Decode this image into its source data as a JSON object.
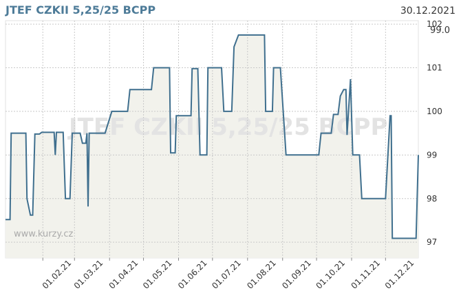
{
  "chart_data": {
    "type": "line",
    "title": "JTEF CZKII 5,25/25 BCPP",
    "date": "30.12.2021",
    "current_label": "99.0",
    "watermark": "JTEF CZKII 5,25/25 BCPP",
    "source": "www.kurzy.cz",
    "x": [
      "2020-12-30",
      "2021-01-03",
      "2021-01-04",
      "2021-01-17",
      "2021-01-18",
      "2021-01-21",
      "2021-01-23",
      "2021-01-25",
      "2021-01-29",
      "2021-01-31",
      "2021-02-11",
      "2021-02-12",
      "2021-02-13",
      "2021-02-19",
      "2021-02-21",
      "2021-02-25",
      "2021-02-27",
      "2021-03-06",
      "2021-03-08",
      "2021-03-11",
      "2021-03-12",
      "2021-03-13",
      "2021-03-14",
      "2021-03-28",
      "2021-04-03",
      "2021-04-17",
      "2021-04-19",
      "2021-05-08",
      "2021-05-10",
      "2021-05-24",
      "2021-05-25",
      "2021-05-29",
      "2021-05-30",
      "2021-06-12",
      "2021-06-13",
      "2021-06-18",
      "2021-06-20",
      "2021-06-26",
      "2021-06-27",
      "2021-07-09",
      "2021-07-11",
      "2021-07-18",
      "2021-07-20",
      "2021-07-24",
      "2021-08-16",
      "2021-08-17",
      "2021-08-23",
      "2021-08-24",
      "2021-08-30",
      "2021-09-04",
      "2021-10-03",
      "2021-10-05",
      "2021-10-14",
      "2021-10-16",
      "2021-10-20",
      "2021-10-22",
      "2021-10-25",
      "2021-10-27",
      "2021-10-28",
      "2021-10-31",
      "2021-11-02",
      "2021-11-08",
      "2021-11-10",
      "2021-12-01",
      "2021-12-05",
      "2021-12-06",
      "2021-12-07",
      "2021-12-28",
      "2021-12-30"
    ],
    "series": [
      {
        "name": "JTEF CZKII 5,25/25 BCPP",
        "color": "#3f6f8e",
        "values": [
          97.52,
          97.52,
          99.5,
          99.5,
          98.0,
          97.62,
          97.62,
          99.48,
          99.48,
          99.52,
          99.52,
          99.0,
          99.52,
          99.52,
          98.0,
          98.0,
          99.5,
          99.5,
          99.27,
          99.27,
          99.5,
          97.82,
          99.5,
          99.5,
          100.0,
          100.0,
          100.5,
          100.5,
          101.0,
          101.0,
          99.05,
          99.05,
          99.9,
          99.9,
          100.98,
          100.98,
          99.0,
          99.0,
          101.0,
          101.0,
          100.0,
          100.0,
          101.48,
          101.75,
          101.75,
          100.0,
          100.0,
          101.0,
          101.0,
          99.0,
          99.0,
          99.5,
          99.5,
          99.93,
          99.93,
          100.35,
          100.5,
          100.5,
          99.46,
          100.74,
          99.0,
          99.0,
          98.0,
          98.0,
          99.9,
          99.9,
          97.09,
          97.09,
          99.0
        ]
      }
    ],
    "fill_color": "#f2f2ec",
    "xlim": [
      "2020-12-30",
      "2021-12-30"
    ],
    "xticks": [
      {
        "value": "2021-02-01",
        "label": "01.02.21"
      },
      {
        "value": "2021-03-01",
        "label": "01.03.21"
      },
      {
        "value": "2021-04-01",
        "label": "01.04.21"
      },
      {
        "value": "2021-05-01",
        "label": "01.05.21"
      },
      {
        "value": "2021-06-01",
        "label": "01.06.21"
      },
      {
        "value": "2021-07-01",
        "label": "01.07.21"
      },
      {
        "value": "2021-08-01",
        "label": "01.08.21"
      },
      {
        "value": "2021-09-01",
        "label": "01.09.21"
      },
      {
        "value": "2021-10-01",
        "label": "01.10.21"
      },
      {
        "value": "2021-11-01",
        "label": "01.11.21"
      },
      {
        "value": "2021-12-01",
        "label": "01.12.21"
      }
    ],
    "ylim": [
      96.64,
      102.08
    ],
    "yticks": [
      97,
      98,
      99,
      100,
      101,
      102
    ],
    "grid": true
  }
}
